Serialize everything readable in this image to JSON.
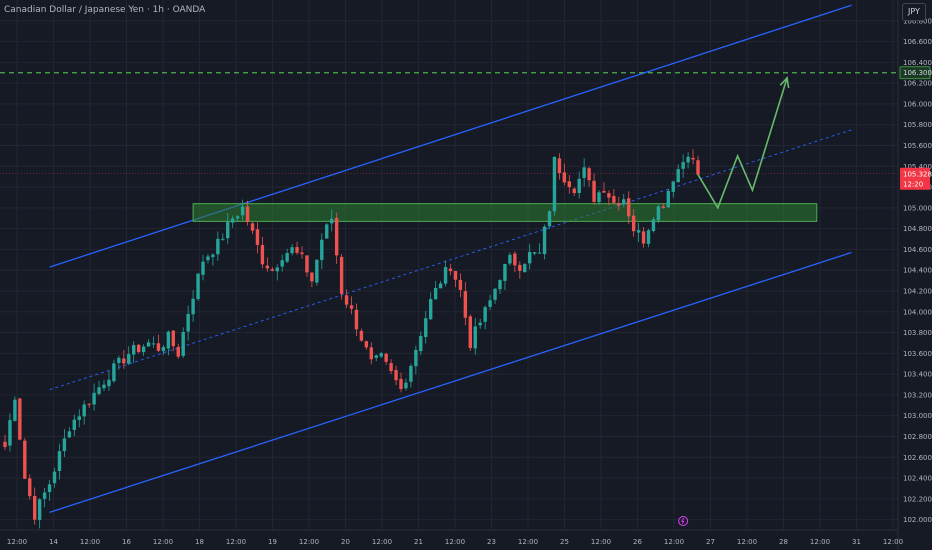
{
  "window": {
    "symbol_title": "Canadian Dollar / Japanese Yen · 1h · OANDA",
    "currency_button": "JPY"
  },
  "colors": {
    "background": "#161a25",
    "grid": "#232632",
    "up_candle": "#26a69a",
    "down_candle": "#ef5350",
    "channel": "#2962ff",
    "midline": "#2962ff",
    "target_line": "#4caf50",
    "zone_fill": "#2e7d32",
    "projection": "#66bb6a",
    "axis_text": "#b2b5be",
    "price_tag": "#f23645"
  },
  "chart_data": {
    "type": "candlestick",
    "symbol": "CADJPY",
    "interval": "1h",
    "ylim": [
      101.9,
      107.0
    ],
    "y_ticks": [
      "106.800",
      "106.600",
      "106.400",
      "106.200",
      "106.000",
      "105.800",
      "105.600",
      "105.400",
      "105.200",
      "105.000",
      "104.800",
      "104.600",
      "104.400",
      "104.200",
      "104.000",
      "103.800",
      "103.600",
      "103.400",
      "103.200",
      "103.000",
      "102.800",
      "102.600",
      "102.400",
      "102.200",
      "102.000"
    ],
    "x_ticks": [
      "12:00",
      "14",
      "12:00",
      "16",
      "12:00",
      "18",
      "12:00",
      "19",
      "12:00",
      "20",
      "12:00",
      "21",
      "12:00",
      "23",
      "12:00",
      "25",
      "12:00",
      "26",
      "12:00",
      "27",
      "12:00",
      "28",
      "12:00",
      "31",
      "12:00"
    ],
    "path_points": [
      [
        0,
        102.7
      ],
      [
        2,
        103.2
      ],
      [
        4,
        102.4
      ],
      [
        6,
        102.05
      ],
      [
        9,
        102.35
      ],
      [
        13,
        102.9
      ],
      [
        17,
        103.15
      ],
      [
        21,
        103.4
      ],
      [
        25,
        103.6
      ],
      [
        29,
        103.7
      ],
      [
        31,
        103.65
      ],
      [
        33,
        103.75
      ],
      [
        35,
        103.6
      ],
      [
        37,
        104.0
      ],
      [
        40,
        104.5
      ],
      [
        43,
        104.65
      ],
      [
        46,
        104.9
      ],
      [
        48,
        105.0
      ],
      [
        50,
        104.75
      ],
      [
        52,
        104.5
      ],
      [
        54,
        104.4
      ],
      [
        56,
        104.55
      ],
      [
        58,
        104.6
      ],
      [
        60,
        104.5
      ],
      [
        62,
        104.3
      ],
      [
        64,
        104.7
      ],
      [
        66,
        104.9
      ],
      [
        68,
        104.2
      ],
      [
        70,
        104.0
      ],
      [
        72,
        103.75
      ],
      [
        74,
        103.5
      ],
      [
        76,
        103.55
      ],
      [
        78,
        103.4
      ],
      [
        80,
        103.25
      ],
      [
        82,
        103.5
      ],
      [
        84,
        103.8
      ],
      [
        86,
        104.1
      ],
      [
        88,
        104.3
      ],
      [
        90,
        104.45
      ],
      [
        92,
        104.2
      ],
      [
        94,
        103.7
      ],
      [
        96,
        103.9
      ],
      [
        98,
        104.1
      ],
      [
        100,
        104.35
      ],
      [
        102,
        104.5
      ],
      [
        104,
        104.45
      ],
      [
        106,
        104.55
      ],
      [
        108,
        104.55
      ],
      [
        110,
        105.0
      ],
      [
        111,
        105.45
      ],
      [
        113,
        105.3
      ],
      [
        115,
        105.2
      ],
      [
        117,
        105.35
      ],
      [
        119,
        105.1
      ],
      [
        121,
        105.2
      ],
      [
        123,
        105.05
      ],
      [
        125,
        105.1
      ],
      [
        127,
        104.8
      ],
      [
        129,
        104.7
      ],
      [
        131,
        104.95
      ],
      [
        133,
        105.05
      ],
      [
        135,
        105.3
      ],
      [
        137,
        105.45
      ],
      [
        138,
        105.55
      ],
      [
        140,
        105.32
      ]
    ],
    "channel_upper": {
      "start": [
        9,
        104.43
      ],
      "end": [
        171,
        106.95
      ]
    },
    "channel_lower": {
      "start": [
        9,
        102.07
      ],
      "end": [
        171,
        104.57
      ]
    },
    "channel_mid": {
      "start": [
        9,
        103.25
      ],
      "end": [
        171,
        105.75
      ]
    },
    "target_level": 106.3,
    "target_label": "106.300",
    "current_price": 105.328,
    "current_price_label": "105.328",
    "countdown_label": "12:20",
    "support_zone": [
      104.87,
      105.04
    ],
    "zone_bar_start": 38,
    "zone_bar_end": 164,
    "projection_path": [
      [
        140,
        105.32
      ],
      [
        144,
        105.0
      ],
      [
        148,
        105.5
      ],
      [
        151,
        105.17
      ],
      [
        158,
        106.25
      ]
    ],
    "event_marker_bar": 137
  }
}
